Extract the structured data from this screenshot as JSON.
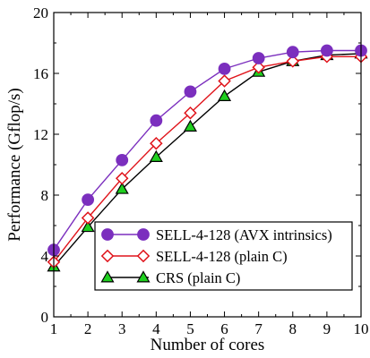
{
  "chart_data": {
    "type": "line",
    "title": "",
    "xlabel": "Number of cores",
    "ylabel": "Performance (Gflop/s)",
    "xlim": [
      1,
      10
    ],
    "ylim": [
      0,
      20
    ],
    "x": [
      1,
      2,
      3,
      4,
      5,
      6,
      7,
      8,
      9,
      10
    ],
    "x_ticks": [
      "1",
      "2",
      "3",
      "4",
      "5",
      "6",
      "7",
      "8",
      "9",
      "10"
    ],
    "y_ticks": [
      "0",
      "4",
      "8",
      "12",
      "16",
      "20"
    ],
    "grid": false,
    "legend_position": "bottom-right",
    "series": [
      {
        "name": "SELL-4-128 (AVX intrinsics)",
        "marker": "filled-circle",
        "color": "#7b2fbe",
        "values": [
          4.4,
          7.7,
          10.3,
          12.9,
          14.8,
          16.3,
          17.0,
          17.4,
          17.5,
          17.5
        ]
      },
      {
        "name": "SELL-4-128 (plain C)",
        "marker": "open-diamond",
        "color": "#e0141b",
        "values": [
          3.6,
          6.5,
          9.1,
          11.4,
          13.4,
          15.5,
          16.4,
          16.8,
          17.1,
          17.1
        ]
      },
      {
        "name": "CRS (plain C)",
        "marker": "filled-triangle",
        "color": "#000000",
        "fill": "#1fcf1f",
        "values": [
          3.3,
          5.9,
          8.4,
          10.5,
          12.5,
          14.5,
          16.1,
          16.8,
          17.2,
          17.3
        ]
      }
    ]
  }
}
